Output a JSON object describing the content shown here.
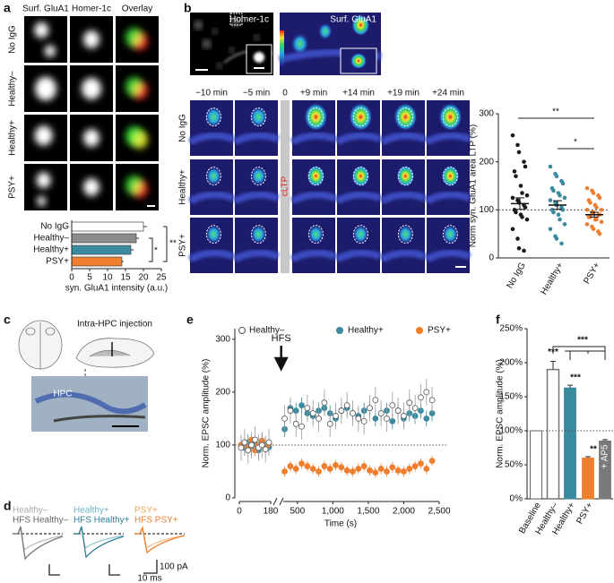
{
  "panel_letters": [
    "a",
    "b",
    "c",
    "d",
    "e",
    "f"
  ],
  "panel_a": {
    "column_headers": [
      "Surf. GluA1",
      "Homer-1c",
      "Overlay"
    ],
    "row_labels": [
      "No IgG",
      "Healthy–",
      "Healthy+",
      "PSY+"
    ]
  },
  "panel_b": {
    "image_labels": [
      "Homer-1c",
      "Surf. GluA1"
    ],
    "time_labels": [
      "−10 min",
      "−5 min",
      "0",
      "+9 min",
      "+14 min",
      "+19 min",
      "+24 min"
    ],
    "cltp_label": "cLTP",
    "row_labels": [
      "No IgG",
      "Healthy+",
      "PSY+"
    ]
  },
  "panel_c": {
    "injection_label": "Intra-HPC injection",
    "region_label": "HPC"
  },
  "panel_d": {
    "legend": [
      "Healthy–",
      "HFS Healthy–",
      "Healthy+",
      "HFS Healthy+",
      "PSY+",
      "HFS PSY+"
    ],
    "scale_current": "100 pA",
    "scale_time": "10 ms"
  },
  "chart_data": [
    {
      "type": "hbar",
      "categories": [
        "No IgG",
        "Healthy–",
        "Healthy+",
        "PSY+"
      ],
      "values": [
        20,
        18,
        16.5,
        14
      ],
      "errors": [
        1,
        0.8,
        0.8,
        0.5
      ],
      "colors": [
        "#ffffff",
        "#8c8c8c",
        "#3a8aa0",
        "#ef7f2e"
      ],
      "xlim": [
        0,
        25
      ],
      "xticks": [
        0,
        5,
        10,
        15,
        20,
        25
      ],
      "xlabel": "syn. GluA1 intensity (a.u.)",
      "annotations": [
        "*",
        "**"
      ]
    },
    {
      "type": "dot",
      "categories": [
        "No IgG",
        "Healthy+",
        "PSY+"
      ],
      "points": [
        [
          255,
          235,
          220,
          200,
          190,
          180,
          170,
          150,
          135,
          130,
          125,
          120,
          115,
          110,
          105,
          100,
          95,
          90,
          85,
          80,
          60,
          40,
          20,
          15
        ],
        [
          190,
          175,
          170,
          160,
          155,
          145,
          140,
          135,
          130,
          125,
          120,
          115,
          110,
          105,
          100,
          100,
          95,
          90,
          80,
          70,
          60,
          45,
          40,
          30
        ],
        [
          145,
          140,
          135,
          130,
          125,
          120,
          115,
          110,
          105,
          100,
          100,
          95,
          95,
          90,
          90,
          85,
          85,
          80,
          80,
          75,
          70,
          65,
          60,
          55,
          50
        ]
      ],
      "means": [
        113,
        110,
        90
      ],
      "errors": [
        12,
        9,
        5
      ],
      "colors": [
        "#1a1a1a",
        "#3a8aa0",
        "#ef7f2e"
      ],
      "ylim": [
        0,
        300
      ],
      "yticks": [
        0,
        100,
        200,
        300
      ],
      "ylabel": "Norm syn. GluA1 area LTP (%)",
      "reference": 100,
      "annotations": [
        "**",
        "*"
      ]
    },
    {
      "type": "line-scatter",
      "x": [
        10,
        30,
        50,
        70,
        90,
        110,
        130,
        150,
        170,
        320,
        400,
        480,
        560,
        640,
        720,
        800,
        880,
        960,
        1040,
        1120,
        1200,
        1280,
        1360,
        1440,
        1520,
        1600,
        1680,
        1760,
        1840,
        1920,
        2000,
        2080,
        2160,
        2240,
        2320,
        2400
      ],
      "series": [
        {
          "name": "Healthy–",
          "color": "#ffffff",
          "error": 25,
          "values": [
            95,
            105,
            90,
            100,
            110,
            95,
            100,
            92,
            105,
            150,
            165,
            140,
            135,
            170,
            160,
            150,
            180,
            140,
            155,
            165,
            175,
            160,
            150,
            145,
            170,
            185,
            160,
            150,
            175,
            165,
            155,
            180,
            170,
            190,
            200,
            185
          ]
        },
        {
          "name": "Healthy+",
          "color": "#3a8aa0",
          "error": 15,
          "values": [
            100,
            95,
            105,
            98,
            102,
            90,
            108,
            100,
            96,
            130,
            170,
            165,
            175,
            160,
            155,
            165,
            170,
            160,
            150,
            165,
            170,
            160,
            155,
            165,
            170,
            150,
            160,
            165,
            145,
            165,
            150,
            160,
            155,
            165,
            150,
            160
          ]
        },
        {
          "name": "PSY+",
          "color": "#ef7f2e",
          "error": 10,
          "values": [
            100,
            105,
            95,
            110,
            90,
            100,
            108,
            95,
            102,
            50,
            60,
            55,
            65,
            60,
            55,
            50,
            60,
            55,
            62,
            58,
            52,
            50,
            55,
            60,
            52,
            48,
            55,
            50,
            58,
            52,
            50,
            55,
            60,
            65,
            55,
            70
          ]
        }
      ],
      "x_segments": [
        [
          0,
          180
        ],
        [
          300,
          2500
        ]
      ],
      "xticks": [
        0,
        180,
        500,
        {
          "value": 1000,
          "label": "1,000"
        },
        {
          "value": 1500,
          "label": "1,500"
        },
        {
          "value": 2000,
          "label": "2,000"
        },
        {
          "value": 2500,
          "label": "2,500"
        }
      ],
      "ylim": [
        0,
        320
      ],
      "yticks": [
        0,
        100,
        200,
        300
      ],
      "xlabel": "Time (s)",
      "ylabel": "Norm. EPSC amplitude (%)",
      "reference": 100,
      "annotation": "HFS",
      "annotation_x": 240
    },
    {
      "type": "bar",
      "categories": [
        "Baseline",
        "Healthy–",
        "Healthy+",
        "PSY+",
        "+ AP5"
      ],
      "values": [
        100,
        190,
        163,
        60,
        85
      ],
      "errors": [
        0,
        12,
        4,
        2,
        2
      ],
      "colors": [
        "#ffffff",
        "#ffffff",
        "#3a8aa0",
        "#ef7f2e",
        "#7a7a7a"
      ],
      "ylim": [
        0,
        250
      ],
      "yticks": [
        {
          "value": 0,
          "label": "0%"
        },
        {
          "value": 50,
          "label": "50%"
        },
        {
          "value": 100,
          "label": "100%"
        },
        {
          "value": 150,
          "label": "150%"
        },
        {
          "value": 200,
          "label": "200%"
        },
        {
          "value": 250,
          "label": "250%"
        }
      ],
      "ylabel": "Norm. EPSC amplitude (%)",
      "reference": 100,
      "annotations": [
        "***",
        "***",
        "**",
        "***"
      ]
    }
  ]
}
